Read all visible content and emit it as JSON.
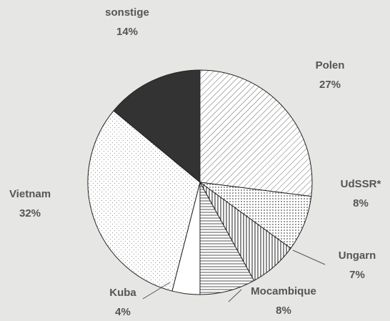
{
  "chart_data": {
    "type": "pie",
    "categories": [
      "Polen",
      "UdSSR*",
      "Ungarn",
      "Mocambique",
      "Kuba",
      "Vietnam",
      "sonstige"
    ],
    "values": [
      27,
      8,
      7,
      8,
      4,
      32,
      14
    ],
    "value_labels": [
      "27%",
      "8%",
      "7%",
      "8%",
      "4%",
      "32%",
      "14%"
    ],
    "patterns": [
      "diagonal",
      "crosshatch",
      "vertical",
      "horizontal",
      "none",
      "dots",
      "solid"
    ],
    "color": "#333333"
  }
}
